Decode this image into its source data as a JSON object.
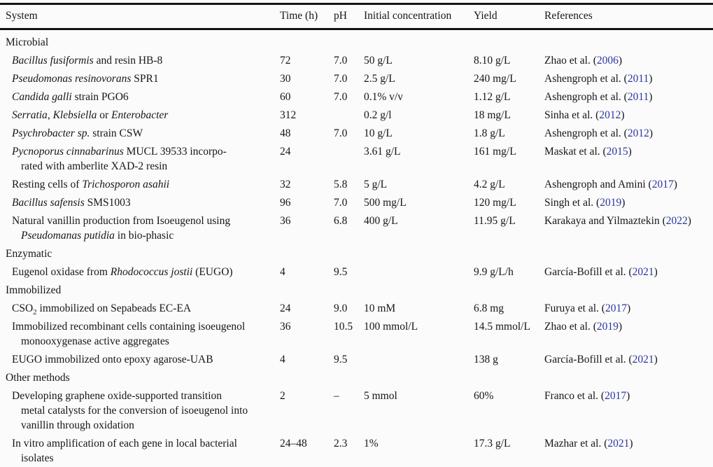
{
  "table": {
    "link_color": "#2b35a2",
    "columns": [
      "System",
      "Time (h)",
      "pH",
      "Initial concentration",
      "Yield",
      "References"
    ],
    "rows": [
      {
        "type": "section",
        "system": [
          {
            "t": "Microbial"
          }
        ]
      },
      {
        "type": "entry",
        "system": [
          {
            "t": "Bacillus fusiformis",
            "i": true
          },
          {
            "t": " and resin HB-8"
          }
        ],
        "time": "72",
        "ph": "7.0",
        "conc": "50 g/L",
        "yield": "8.10 g/L",
        "ref": {
          "pre": "Zhao et al. (",
          "year": "2006",
          "post": ")"
        }
      },
      {
        "type": "entry",
        "system": [
          {
            "t": "Pseudomonas resinovorans",
            "i": true
          },
          {
            "t": " SPR1"
          }
        ],
        "time": "30",
        "ph": "7.0",
        "conc": "2.5 g/L",
        "yield": "240 mg/L",
        "ref": {
          "pre": "Ashengroph et al. (",
          "year": "2011",
          "post": ")"
        }
      },
      {
        "type": "entry",
        "system": [
          {
            "t": "Candida galli",
            "i": true
          },
          {
            "t": " strain PGO6"
          }
        ],
        "time": "60",
        "ph": "7.0",
        "conc": "0.1% v/v",
        "yield": "1.12 g/L",
        "ref": {
          "pre": "Ashengroph et al. (",
          "year": "2011",
          "post": ")"
        }
      },
      {
        "type": "entry",
        "system": [
          {
            "t": "Serratia",
            "i": true
          },
          {
            "t": ", "
          },
          {
            "t": "Klebsiella",
            "i": true
          },
          {
            "t": " or "
          },
          {
            "t": "Enterobacter",
            "i": true
          }
        ],
        "time": "312",
        "ph": "",
        "conc": "0.2 g/l",
        "yield": "18 mg/L",
        "ref": {
          "pre": "Sinha et al. (",
          "year": "2012",
          "post": ")"
        }
      },
      {
        "type": "entry",
        "system": [
          {
            "t": "Psychrobacter sp.",
            "i": true
          },
          {
            "t": " strain CSW"
          }
        ],
        "time": "48",
        "ph": "7.0",
        "conc": "10 g/L",
        "yield": "1.8 g/L",
        "ref": {
          "pre": "Ashengroph et al. (",
          "year": "2012",
          "post": ")"
        }
      },
      {
        "type": "entry",
        "system": [
          {
            "t": "Pycnoporus cinnabarinus",
            "i": true
          },
          {
            "t": " MUCL 39533 incorpo-"
          },
          {
            "br": true
          },
          {
            "t": "rated with amberlite XAD-2 resin"
          }
        ],
        "time": "24",
        "ph": "",
        "conc": "3.61 g/L",
        "yield": "161 mg/L",
        "ref": {
          "pre": "Maskat et al. (",
          "year": "2015",
          "post": ")"
        }
      },
      {
        "type": "entry",
        "system": [
          {
            "t": "Resting cells of "
          },
          {
            "t": "Trichosporon asahii",
            "i": true
          }
        ],
        "time": "32",
        "ph": "5.8",
        "conc": "5 g/L",
        "yield": "4.2 g/L",
        "ref": {
          "pre": "Ashengroph and Amini (",
          "year": "2017",
          "post": ")"
        }
      },
      {
        "type": "entry",
        "system": [
          {
            "t": "Bacillus safensis",
            "i": true
          },
          {
            "t": " SMS1003"
          }
        ],
        "time": "96",
        "ph": "7.0",
        "conc": "500 mg/L",
        "yield": "120 mg/L",
        "ref": {
          "pre": "Singh et al. (",
          "year": "2019",
          "post": ")"
        }
      },
      {
        "type": "entry",
        "system": [
          {
            "t": "Natural vanillin production from Isoeugenol using"
          },
          {
            "br": true
          },
          {
            "t": "Pseudomanas putidia",
            "i": true
          },
          {
            "t": " in bio-phasic"
          }
        ],
        "time": "36",
        "ph": "6.8",
        "conc": "400 g/L",
        "yield": "11.95 g/L",
        "ref": {
          "pre": "Karakaya and Yilmaztekin (",
          "year": "2022",
          "post": ")"
        }
      },
      {
        "type": "section",
        "system": [
          {
            "t": "Enzymatic"
          }
        ]
      },
      {
        "type": "entry",
        "system": [
          {
            "t": "Eugenol oxidase from "
          },
          {
            "t": "Rhodococcus jostii",
            "i": true
          },
          {
            "t": " (EUGO)"
          }
        ],
        "time": "4",
        "ph": "9.5",
        "conc": "",
        "yield": "9.9 g/L/h",
        "ref": {
          "pre": "García-Bofill et al. (",
          "year": "2021",
          "post": ")"
        }
      },
      {
        "type": "section",
        "system": [
          {
            "t": "Immobilized"
          }
        ]
      },
      {
        "type": "entry",
        "system": [
          {
            "t": "CSO"
          },
          {
            "t": "2",
            "sub": true
          },
          {
            "t": " immobilized on Sepabeads EC-EA"
          }
        ],
        "time": "24",
        "ph": "9.0",
        "conc": "10 mM",
        "yield": "6.8 mg",
        "ref": {
          "pre": "Furuya et al. (",
          "year": "2017",
          "post": ")"
        }
      },
      {
        "type": "entry",
        "system": [
          {
            "t": "Immobilized recombinant cells containing isoeugenol"
          },
          {
            "br": true
          },
          {
            "t": "monooxygenase active aggregates"
          }
        ],
        "time": "36",
        "ph": "10.5",
        "conc": "100 mmol/L",
        "yield": "14.5 mmol/L",
        "ref": {
          "pre": "Zhao et al. (",
          "year": "2019",
          "post": ")"
        }
      },
      {
        "type": "entry",
        "system": [
          {
            "t": "EUGO immobilized onto epoxy agarose-UAB"
          }
        ],
        "time": "4",
        "ph": "9.5",
        "conc": "",
        "yield": "138 g",
        "ref": {
          "pre": "García-Bofill et al. (",
          "year": "2021",
          "post": ")"
        }
      },
      {
        "type": "section",
        "system": [
          {
            "t": "Other methods"
          }
        ]
      },
      {
        "type": "entry",
        "system": [
          {
            "t": "Developing graphene oxide-supported transition"
          },
          {
            "br": true
          },
          {
            "t": "metal catalysts for the conversion of isoeugenol into"
          },
          {
            "br": true
          },
          {
            "t": "vanillin through oxidation"
          }
        ],
        "time": "2",
        "ph": "–",
        "conc": "5 mmol",
        "yield": "60%",
        "ref": {
          "pre": "Franco et al. (",
          "year": "2017",
          "post": ")"
        }
      },
      {
        "type": "entry",
        "system": [
          {
            "t": "In vitro amplification of each gene in local bacterial"
          },
          {
            "br": true
          },
          {
            "t": "isolates"
          }
        ],
        "time": "24–48",
        "ph": "2.3",
        "conc": "1%",
        "yield": "17.3 g/L",
        "ref": {
          "pre": "Mazhar et al. (",
          "year": "2021",
          "post": ")"
        }
      }
    ]
  }
}
